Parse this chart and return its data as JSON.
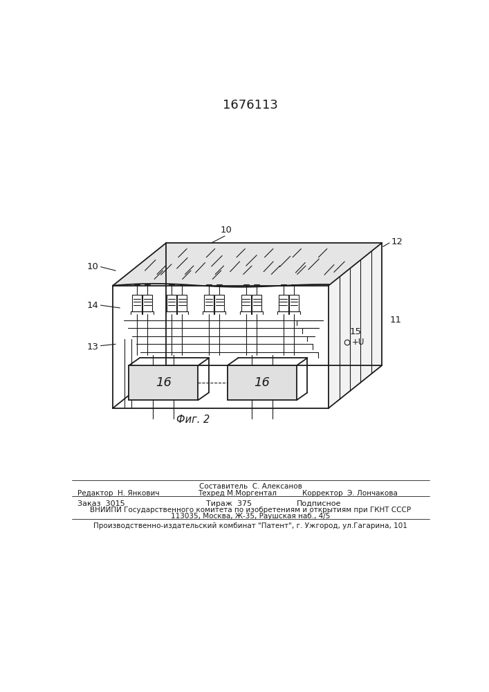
{
  "title": "1676113",
  "fig_label": "Фиг. 2",
  "bg_color": "#ffffff",
  "line_color": "#1a1a1a",
  "lw": 1.3,
  "tlw": 0.8,
  "footer": {
    "line0_center": "Составитель  С. Алексанов",
    "line1_left": "Редактор  Н. Янкович",
    "line1_center": "Техред М.Моргентал",
    "line1_right": "Корректор  Э. Лончакова",
    "line2_left": "Заказ  3015",
    "line2_center": "Тираж  375",
    "line2_right": "Подписное",
    "line3": "ВНИИПИ Государственного комитета по изобретениям и открытиям при ГКНТ СССР",
    "line4": "113035, Москва, Ж-35, Раушская наб., 4/5",
    "line5": "Производственно-издательский комбинат \"Патент\", г. Ужгород, ул.Гагарина, 101"
  }
}
